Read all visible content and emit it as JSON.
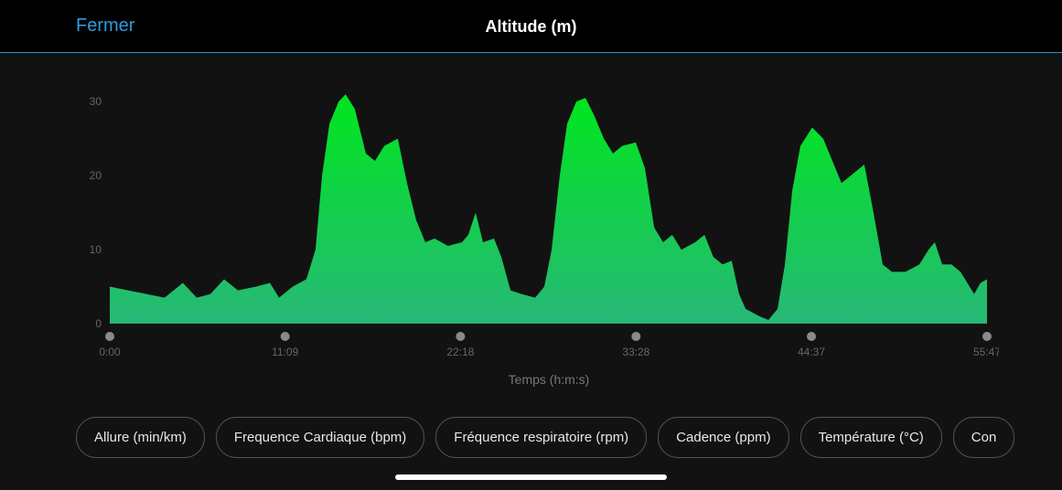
{
  "header": {
    "close": "Fermer",
    "title": "Altitude (m)"
  },
  "chart_data": {
    "type": "area",
    "x_label": "Temps (h:m:s)",
    "x": [
      0,
      70,
      140,
      209,
      279,
      332,
      384,
      436,
      489,
      558,
      611,
      646,
      698,
      750,
      785,
      810,
      838,
      873,
      900,
      935,
      977,
      1012,
      1047,
      1099,
      1134,
      1169,
      1204,
      1239,
      1291,
      1344,
      1368,
      1396,
      1424,
      1466,
      1494,
      1529,
      1571,
      1623,
      1658,
      1686,
      1717,
      1745,
      1780,
      1815,
      1850,
      1885,
      1920,
      1954,
      2007,
      2042,
      2077,
      2111,
      2146,
      2181,
      2234,
      2269,
      2303,
      2338,
      2373,
      2401,
      2426,
      2478,
      2513,
      2548,
      2576,
      2604,
      2635,
      2680,
      2722,
      2757,
      2792,
      2827,
      2879,
      2914,
      2949,
      2984,
      3036,
      3089,
      3124,
      3148,
      3176,
      3211,
      3246,
      3298,
      3322,
      3347
    ],
    "values": [
      5,
      4.5,
      4,
      3.5,
      5.5,
      3.5,
      4,
      6,
      4.5,
      5,
      5.5,
      3.5,
      5,
      6,
      10,
      20,
      27,
      30,
      31,
      29,
      23,
      22,
      24,
      25,
      19,
      14,
      11,
      11.5,
      10.5,
      11,
      12,
      15,
      11,
      11.5,
      9,
      4.5,
      4,
      3.5,
      5,
      10,
      20,
      27,
      30,
      30.5,
      28,
      25,
      23,
      24,
      24.5,
      21,
      13,
      11,
      12,
      10,
      11,
      12,
      9,
      8,
      8.5,
      4,
      2,
      1,
      0.5,
      2,
      8,
      18,
      24,
      26.5,
      25,
      22,
      19,
      20,
      21.5,
      15,
      8,
      7,
      7,
      8,
      10,
      11,
      8,
      8,
      7,
      4,
      5.5,
      6
    ],
    "gradient": [
      "#00e61e",
      "#27b877"
    ],
    "xlim": [
      0,
      3347
    ],
    "xticks": [
      {
        "value": 0,
        "label": "0:00"
      },
      {
        "value": 669,
        "label": "11:09"
      },
      {
        "value": 1338,
        "label": "22:18"
      },
      {
        "value": 2008,
        "label": "33:28"
      },
      {
        "value": 2677,
        "label": "44:37"
      },
      {
        "value": 3347,
        "label": "55:47"
      }
    ],
    "ylim": [
      0,
      32
    ],
    "yticks": [
      0,
      10,
      20,
      30
    ]
  },
  "buttons": [
    "Allure (min/km)",
    "Frequence Cardiaque (bpm)",
    "Fréquence respiratoire (rpm)",
    "Cadence (ppm)",
    "Température (°C)",
    "Con"
  ]
}
